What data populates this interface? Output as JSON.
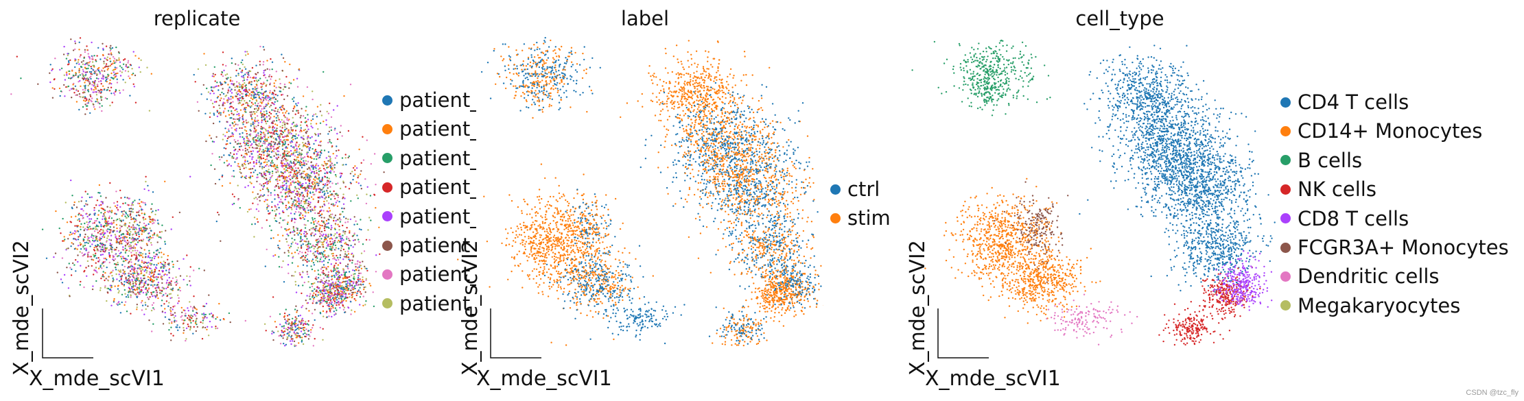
{
  "watermark": "CSDN @tzc_fly",
  "chart_data": [
    {
      "type": "scatter",
      "title": "replicate",
      "xlabel": "X_mde_scVI1",
      "ylabel": "X_mde_scVI2",
      "legend_placement": "right",
      "legend_truncated": true,
      "legend": [
        {
          "label": "patient_",
          "color": "#1f77b4"
        },
        {
          "label": "patient_",
          "color": "#ff7f0e"
        },
        {
          "label": "patient_",
          "color": "#279e68"
        },
        {
          "label": "patient_",
          "color": "#d62728"
        },
        {
          "label": "patient_",
          "color": "#aa40fc"
        },
        {
          "label": "patient_",
          "color": "#8c564b"
        },
        {
          "label": "patient_",
          "color": "#e377c2"
        },
        {
          "label": "patient_",
          "color": "#b5bd61"
        }
      ]
    },
    {
      "type": "scatter",
      "title": "label",
      "xlabel": "X_mde_scVI1",
      "ylabel": "X_mde_scVI2",
      "legend_placement": "right",
      "legend": [
        {
          "label": "ctrl",
          "color": "#1f77b4"
        },
        {
          "label": "stim",
          "color": "#ff7f0e"
        }
      ]
    },
    {
      "type": "scatter",
      "title": "cell_type",
      "xlabel": "X_mde_scVI1",
      "ylabel": "X_mde_scVI2",
      "legend_placement": "right",
      "legend": [
        {
          "label": "CD4 T cells",
          "color": "#1f77b4"
        },
        {
          "label": "CD14+ Monocytes",
          "color": "#ff7f0e"
        },
        {
          "label": "B cells",
          "color": "#279e68"
        },
        {
          "label": "NK cells",
          "color": "#d62728"
        },
        {
          "label": "CD8 T cells",
          "color": "#aa40fc"
        },
        {
          "label": "FCGR3A+ Monocytes",
          "color": "#8c564b"
        },
        {
          "label": "Dendritic cells",
          "color": "#e377c2"
        },
        {
          "label": "Megakaryocytes",
          "color": "#b5bd61"
        }
      ]
    }
  ]
}
